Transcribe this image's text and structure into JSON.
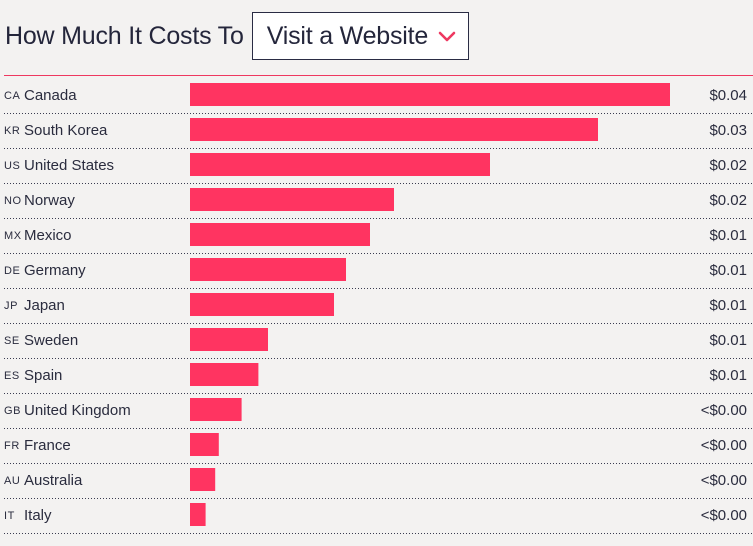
{
  "header": {
    "title": "How Much It Costs To",
    "dropdown_selected": "Visit a Website",
    "chevron_icon": "chevron-down-icon"
  },
  "colors": {
    "bar": "#ff3461",
    "highlight_text": "#ee3a64",
    "text": "#2a2c3e",
    "background": "#f3f2f1"
  },
  "chart_data": {
    "type": "bar",
    "orientation": "horizontal",
    "title": "",
    "xlabel": "",
    "ylabel": "",
    "highlighted": "Canada",
    "categories": [
      "Canada",
      "South Korea",
      "United States",
      "Norway",
      "Mexico",
      "Germany",
      "Japan",
      "Sweden",
      "Spain",
      "United Kingdom",
      "France",
      "Australia",
      "Italy"
    ],
    "country_codes": [
      "CA",
      "KR",
      "US",
      "NO",
      "MX",
      "DE",
      "JP",
      "SE",
      "ES",
      "GB",
      "FR",
      "AU",
      "IT"
    ],
    "values": [
      0.04,
      0.034,
      0.025,
      0.017,
      0.015,
      0.013,
      0.012,
      0.0065,
      0.0057,
      0.0043,
      0.0024,
      0.0021,
      0.0013
    ],
    "value_labels": [
      "$0.04",
      "$0.03",
      "$0.02",
      "$0.02",
      "$0.01",
      "$0.01",
      "$0.01",
      "$0.01",
      "$0.01",
      "<$0.00",
      "<$0.00",
      "<$0.00",
      "<$0.00"
    ],
    "xlim": [
      0,
      0.04
    ],
    "grid": false,
    "legend": "none"
  }
}
